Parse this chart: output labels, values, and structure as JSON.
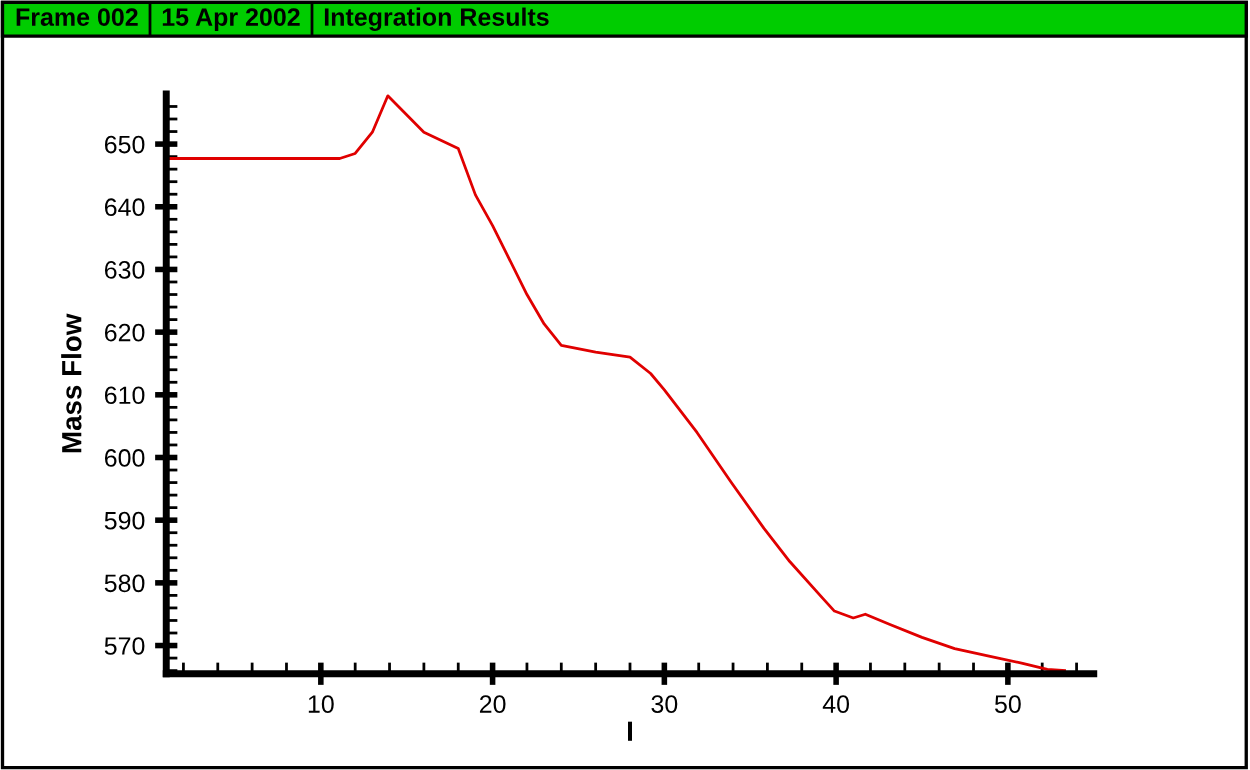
{
  "chart_data": {
    "type": "line",
    "title": "Integration Results",
    "annotations": [
      "Frame 002",
      "15 Apr 2002"
    ],
    "xlabel": "I",
    "ylabel": "Mass Flow",
    "x": [
      1,
      11.1,
      12,
      13,
      13.9,
      16,
      18,
      19,
      20,
      22,
      23,
      24,
      26,
      28,
      29.2,
      30,
      31.9,
      33.9,
      35.8,
      37.3,
      39.2,
      39.9,
      41,
      41.7,
      43.1,
      45,
      46.9,
      48.9,
      50.8,
      52.3,
      53.3
    ],
    "series": [
      {
        "color": "#e00000",
        "values": [
          647.7,
          647.7,
          648.5,
          651.9,
          657.7,
          651.9,
          649.3,
          641.9,
          637,
          626,
          621.3,
          617.9,
          616.8,
          616,
          613.4,
          610.8,
          604,
          596,
          588.7,
          583.4,
          577.6,
          575.5,
          574.4,
          575,
          573.4,
          571.3,
          569.5,
          568.3,
          567.2,
          566.2,
          566
        ]
      }
    ],
    "xlim": [
      1,
      55
    ],
    "ylim": [
      565.5,
      658
    ],
    "xticks": [
      {
        "value": 2,
        "label": null
      },
      {
        "value": 4,
        "label": null
      },
      {
        "value": 6,
        "label": null
      },
      {
        "value": 8,
        "label": null
      },
      10,
      {
        "value": 12,
        "label": null
      },
      {
        "value": 14,
        "label": null
      },
      {
        "value": 16,
        "label": null
      },
      {
        "value": 18,
        "label": null
      },
      20,
      {
        "value": 22,
        "label": null
      },
      {
        "value": 24,
        "label": null
      },
      {
        "value": 26,
        "label": null
      },
      {
        "value": 28,
        "label": null
      },
      30,
      {
        "value": 32,
        "label": null
      },
      {
        "value": 34,
        "label": null
      },
      {
        "value": 36,
        "label": null
      },
      {
        "value": 38,
        "label": null
      },
      40,
      {
        "value": 42,
        "label": null
      },
      {
        "value": 44,
        "label": null
      },
      {
        "value": 46,
        "label": null
      },
      {
        "value": 48,
        "label": null
      },
      50,
      {
        "value": 52,
        "label": null
      },
      {
        "value": 54,
        "label": null
      }
    ],
    "yticks": [
      {
        "value": 566,
        "label": null
      },
      {
        "value": 568,
        "label": null
      },
      570,
      {
        "value": 572,
        "label": null
      },
      {
        "value": 574,
        "label": null
      },
      {
        "value": 576,
        "label": null
      },
      {
        "value": 578,
        "label": null
      },
      580,
      {
        "value": 582,
        "label": null
      },
      {
        "value": 584,
        "label": null
      },
      {
        "value": 586,
        "label": null
      },
      {
        "value": 588,
        "label": null
      },
      590,
      {
        "value": 592,
        "label": null
      },
      {
        "value": 594,
        "label": null
      },
      {
        "value": 596,
        "label": null
      },
      {
        "value": 598,
        "label": null
      },
      600,
      {
        "value": 602,
        "label": null
      },
      {
        "value": 604,
        "label": null
      },
      {
        "value": 606,
        "label": null
      },
      {
        "value": 608,
        "label": null
      },
      610,
      {
        "value": 612,
        "label": null
      },
      {
        "value": 614,
        "label": null
      },
      {
        "value": 616,
        "label": null
      },
      {
        "value": 618,
        "label": null
      },
      620,
      {
        "value": 622,
        "label": null
      },
      {
        "value": 624,
        "label": null
      },
      {
        "value": 626,
        "label": null
      },
      {
        "value": 628,
        "label": null
      },
      630,
      {
        "value": 632,
        "label": null
      },
      {
        "value": 634,
        "label": null
      },
      {
        "value": 636,
        "label": null
      },
      {
        "value": 638,
        "label": null
      },
      640,
      {
        "value": 642,
        "label": null
      },
      {
        "value": 644,
        "label": null
      },
      {
        "value": 646,
        "label": null
      },
      {
        "value": 648,
        "label": null
      },
      650,
      {
        "value": 652,
        "label": null
      },
      {
        "value": 654,
        "label": null
      },
      {
        "value": 656,
        "label": null
      }
    ],
    "grid": false,
    "legend": false,
    "marker": "none",
    "line_style": "solid"
  }
}
